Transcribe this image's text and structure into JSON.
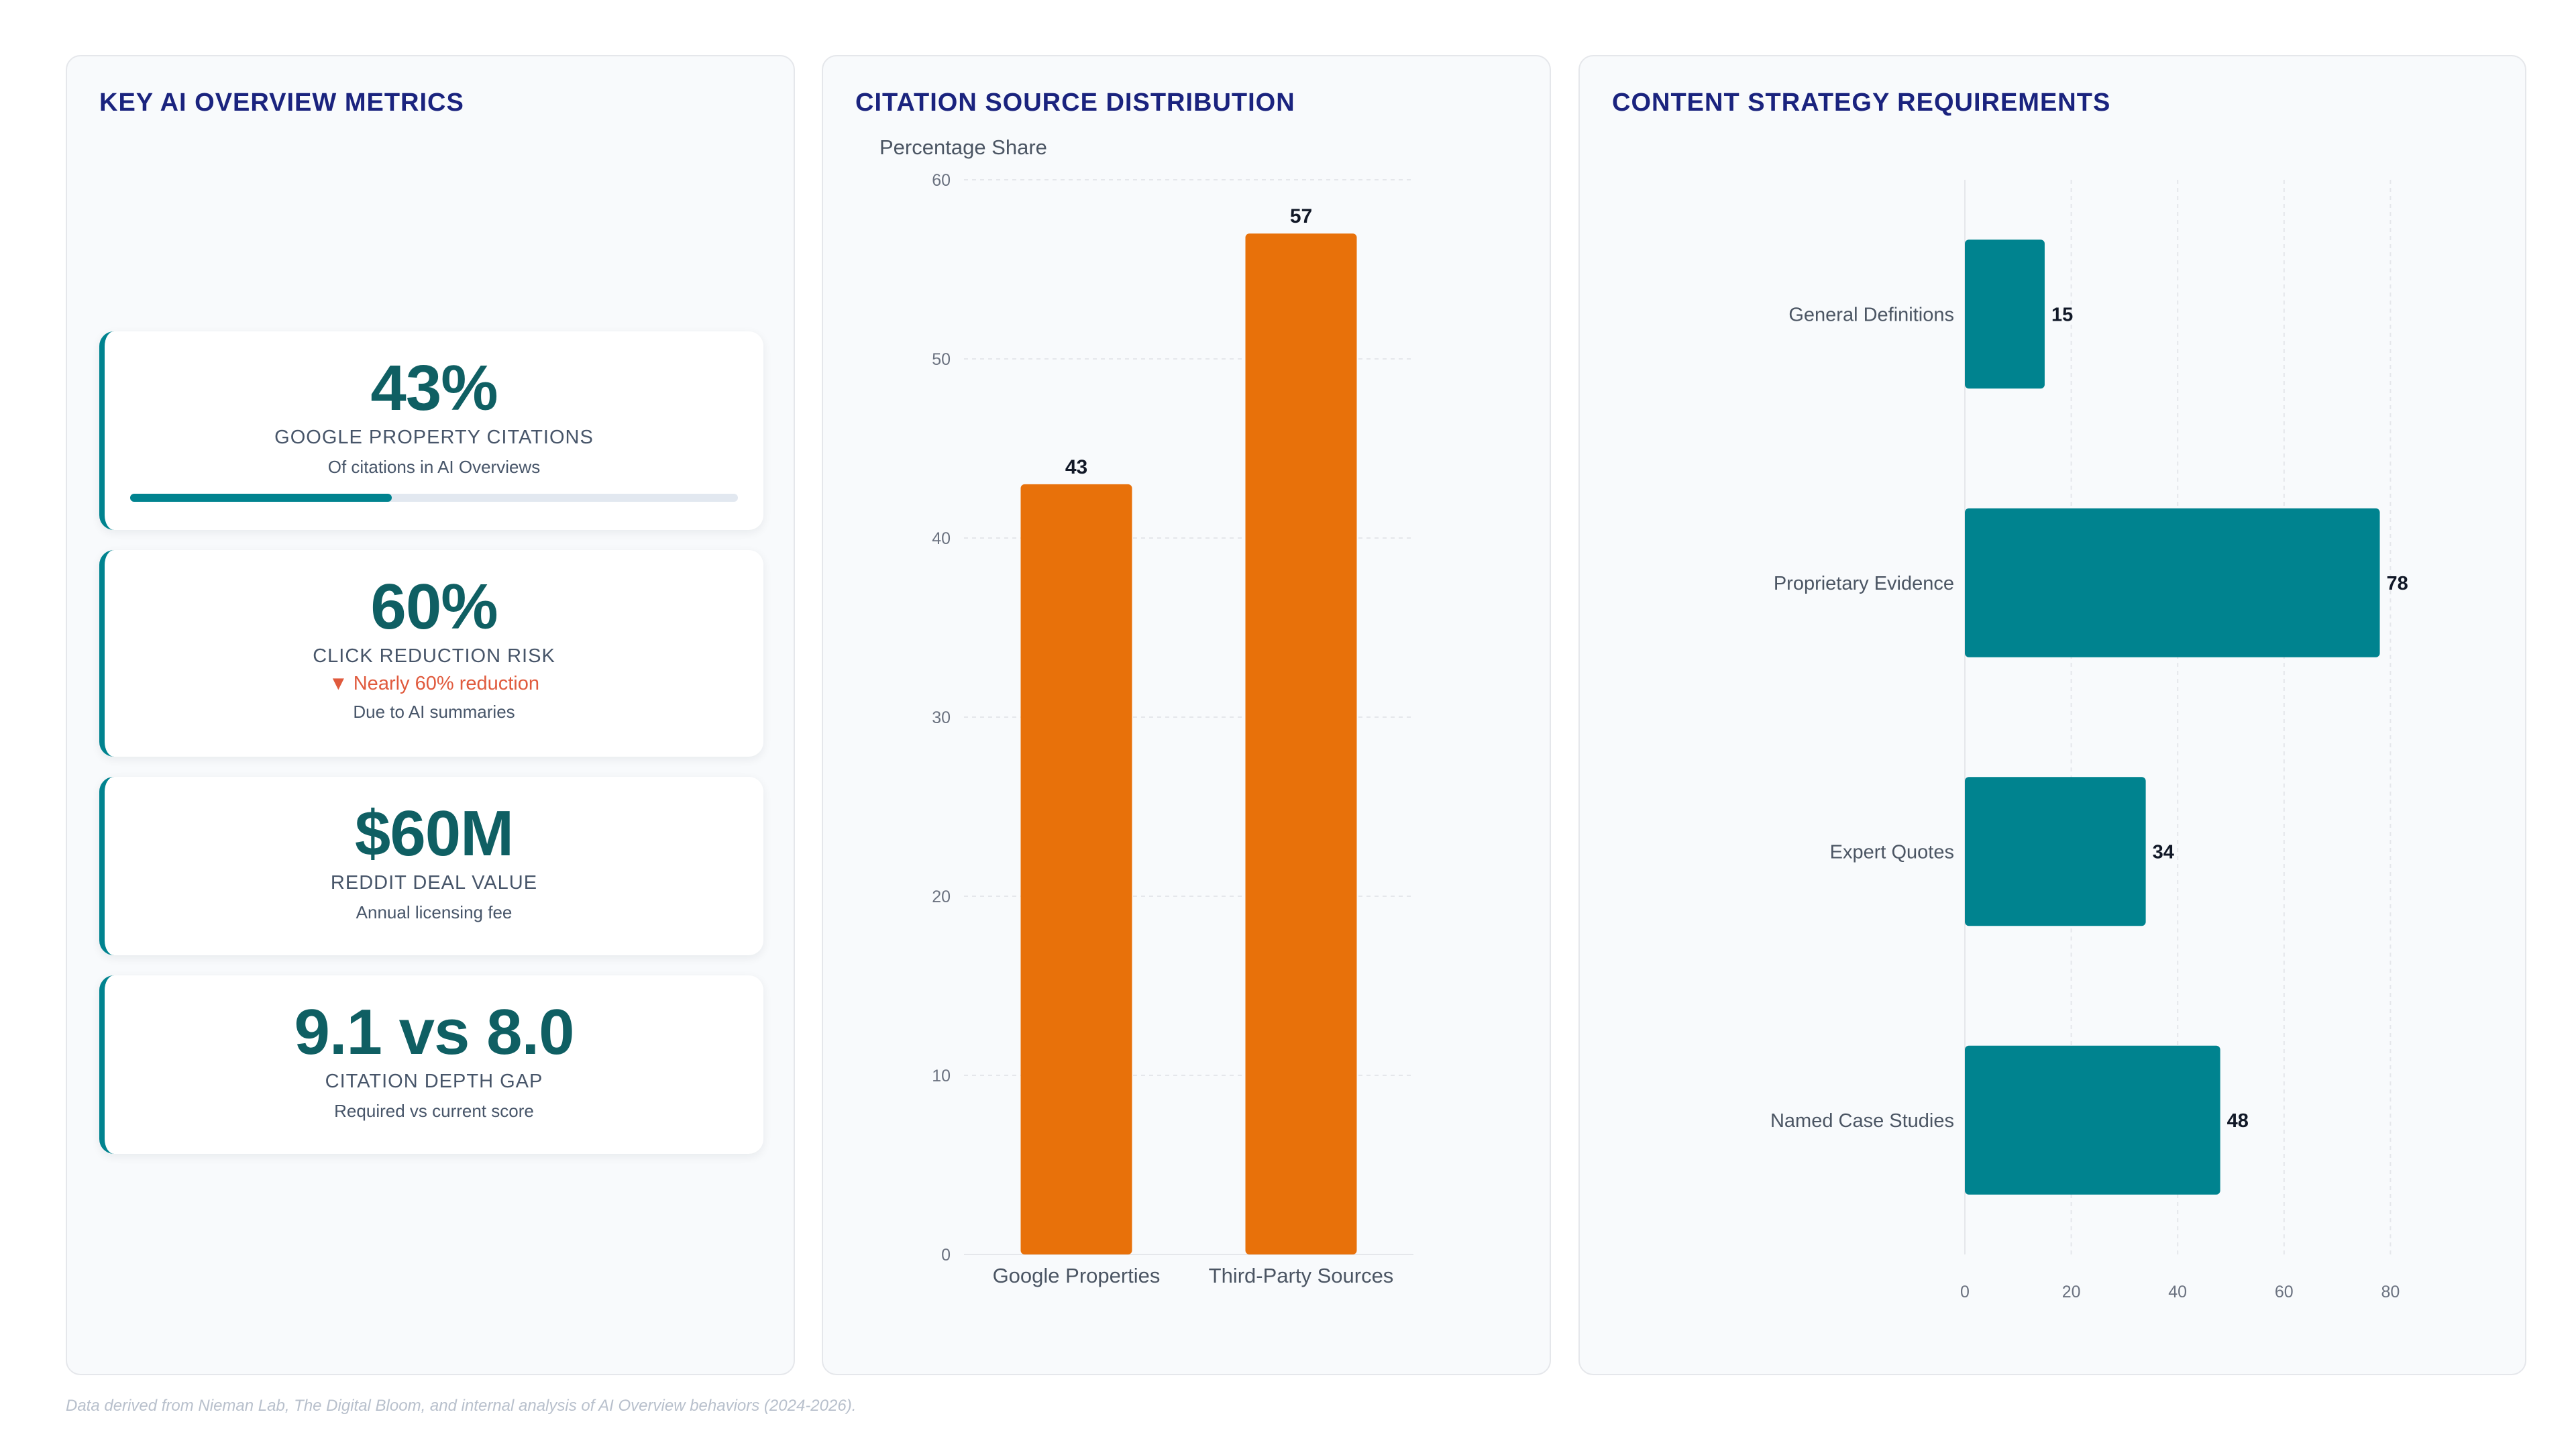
{
  "metrics_panel": {
    "title": "KEY AI OVERVIEW METRICS",
    "cards": [
      {
        "value": "43%",
        "label": "GOOGLE PROPERTY CITATIONS",
        "sub": "Of citations in AI Overviews",
        "progress": 0.43
      },
      {
        "value": "60%",
        "label": "CLICK REDUCTION RISK",
        "trend": "▼ Nearly 60% reduction",
        "sub": "Due to AI summaries"
      },
      {
        "value": "$60M",
        "label": "REDDIT DEAL VALUE",
        "sub": "Annual licensing fee"
      },
      {
        "value": "9.1 vs 8.0",
        "label": "CITATION DEPTH GAP",
        "sub": "Required vs current score"
      }
    ]
  },
  "citation_panel": {
    "title": "CITATION SOURCE DISTRIBUTION"
  },
  "strategy_panel": {
    "title": "CONTENT STRATEGY REQUIREMENTS"
  },
  "chart_data": [
    {
      "type": "bar",
      "orientation": "vertical",
      "categories": [
        "Google Properties",
        "Third-Party Sources"
      ],
      "values": [
        43,
        57
      ],
      "ylabel": "Percentage Share",
      "ylim": [
        0,
        60
      ],
      "yticks": [
        0,
        10,
        20,
        30,
        40,
        50,
        60
      ],
      "data_labels": true,
      "grid": "horizontal",
      "color": "#e8710a"
    },
    {
      "type": "bar",
      "orientation": "horizontal",
      "categories": [
        "General Definitions",
        "Proprietary Evidence",
        "Expert Quotes",
        "Named Case Studies"
      ],
      "values": [
        15,
        78,
        34,
        48
      ],
      "xlim": [
        0,
        90
      ],
      "xticks": [
        0,
        20,
        40,
        60,
        80
      ],
      "data_labels": true,
      "grid": "vertical",
      "color": "#00838f"
    }
  ],
  "footnote": "Data derived from Nieman Lab, The Digital Bloom, and internal analysis of AI Overview behaviors (2024-2026)."
}
